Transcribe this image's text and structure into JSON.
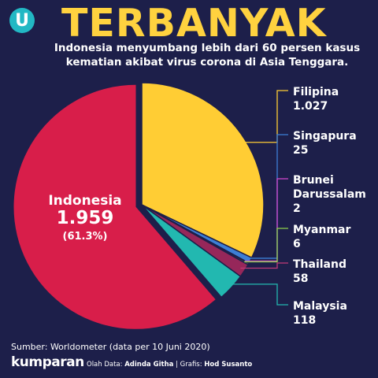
{
  "header": {
    "logo_letter": "U",
    "title": "TERBANYAK",
    "subtitle": "Indonesia menyumbang lebih dari 60 persen kasus kematian akibat virus corona di Asia Tenggara."
  },
  "chart_data": {
    "type": "pie",
    "slices": [
      {
        "name": "Indonesia",
        "value": 1959,
        "value_label": "1.959",
        "percent_label": "(61.3%)",
        "color": "#d81e4a"
      },
      {
        "name": "Filipina",
        "value": 1027,
        "value_label": "1.027",
        "color": "#ffcd34"
      },
      {
        "name": "Singapura",
        "value": 25,
        "value_label": "25",
        "color": "#3d7fd6"
      },
      {
        "name": "Brunei Darussalam",
        "value": 2,
        "value_label": "2",
        "color": "#d548cf"
      },
      {
        "name": "Myanmar",
        "value": 6,
        "value_label": "6",
        "color": "#8ed14a"
      },
      {
        "name": "Thailand",
        "value": 58,
        "value_label": "58",
        "color": "#96275a"
      },
      {
        "name": "Malaysia",
        "value": 118,
        "value_label": "118",
        "color": "#22b8b0"
      }
    ]
  },
  "footer": {
    "source": "Sumber: Worldometer (data per 10 Juni 2020)",
    "brand": "kumparan",
    "credits_data_label": "Olah Data:",
    "credits_data_name": "Adinda Githa",
    "credits_sep": "|",
    "credits_graphic_label": "Grafis:",
    "credits_graphic_name": "Hod Susanto"
  }
}
